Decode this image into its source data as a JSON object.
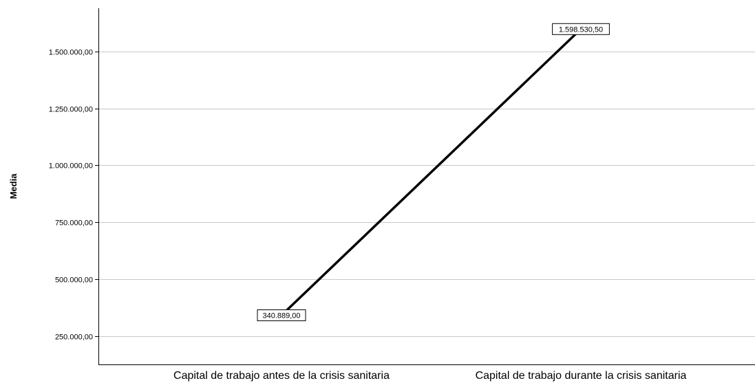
{
  "chart_data": {
    "type": "line",
    "title": "",
    "xlabel": "",
    "ylabel": "Media",
    "categories": [
      "Capital de trabajo antes de la crisis sanitaria",
      "Capital de trabajo durante la crisis sanitaria"
    ],
    "series": [
      {
        "values": [
          340889.0,
          1598530.5
        ],
        "data_labels": [
          "340.889,00",
          "1.598.530,50"
        ]
      }
    ],
    "yticks": [
      250000,
      500000,
      750000,
      1000000,
      1250000,
      1500000
    ],
    "ytick_labels": [
      "250.000,00",
      "500.000,00",
      "750.000,00",
      "1.000.000,00",
      "1.250.000,00",
      "1.500.000,00"
    ],
    "ylim": [
      125000,
      1690000
    ],
    "grid": true,
    "legend": "none",
    "colors": {
      "line": "#000000",
      "grid": "#c8c8c8",
      "axis": "#000000",
      "background": "#ffffff"
    }
  }
}
